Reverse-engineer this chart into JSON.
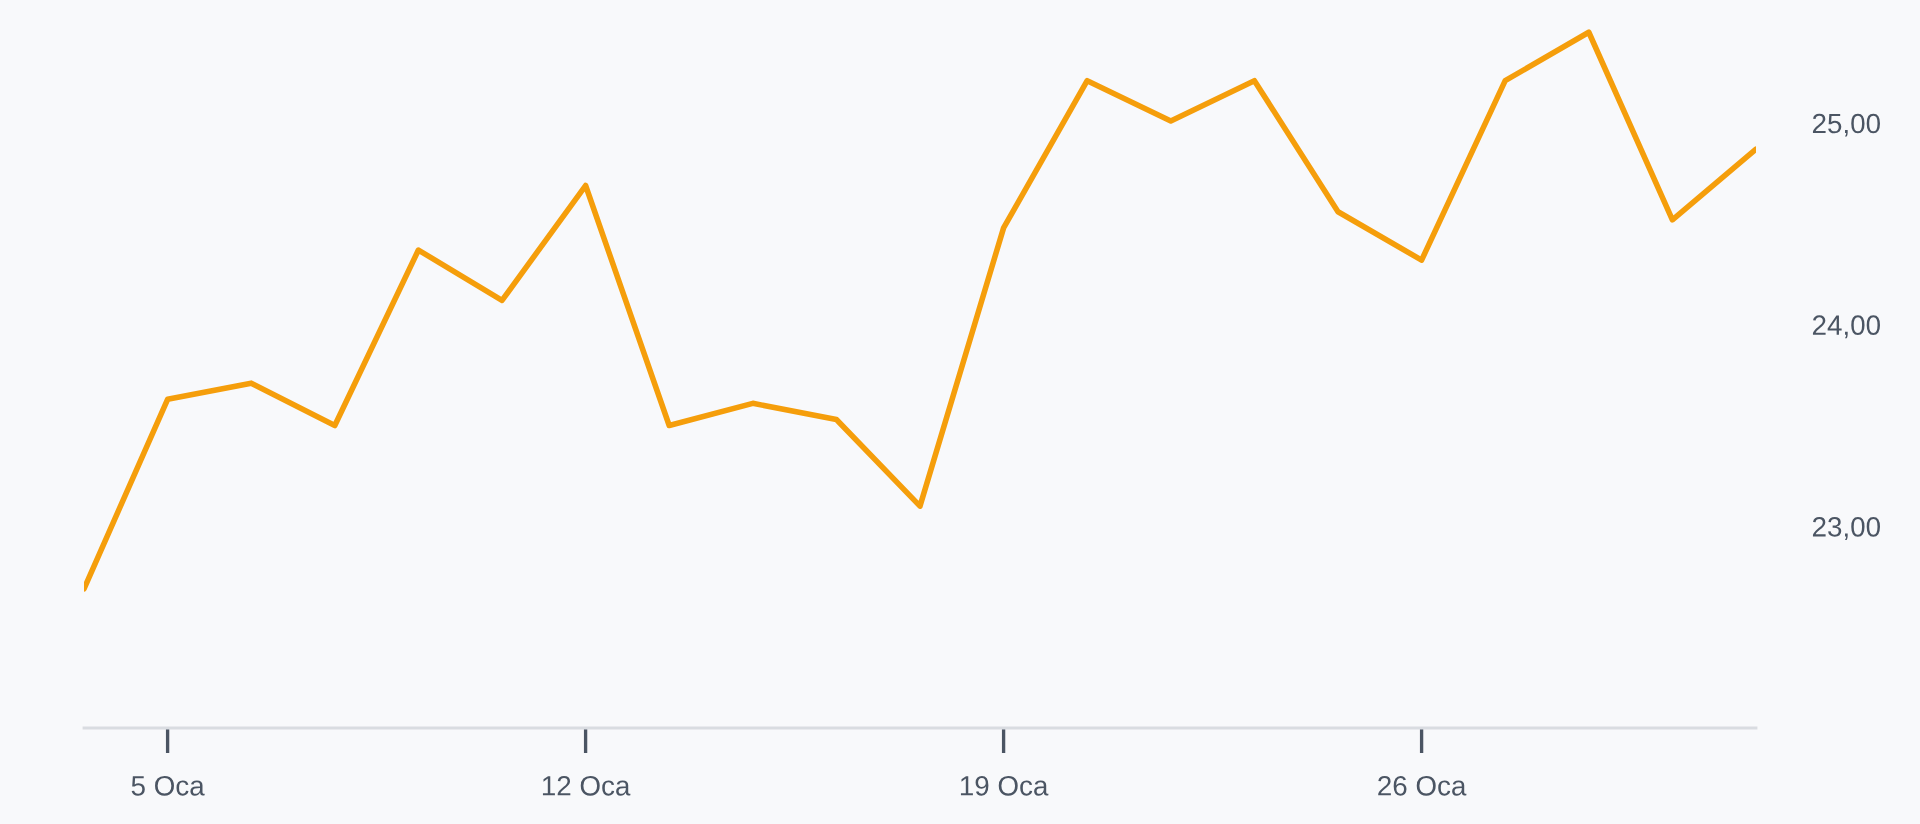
{
  "chart_data": {
    "type": "line",
    "categories": [
      null,
      "5 Oca",
      null,
      null,
      null,
      null,
      "12 Oca",
      null,
      null,
      null,
      null,
      "19 Oca",
      null,
      null,
      null,
      null,
      "26 Oca",
      null,
      null,
      null,
      null
    ],
    "series": [
      {
        "color": "#f59e0b",
        "values": [
          22.69,
          23.63,
          23.71,
          23.5,
          24.37,
          24.12,
          24.69,
          23.5,
          23.61,
          23.53,
          23.1,
          24.48,
          25.21,
          25.01,
          25.21,
          24.56,
          24.32,
          25.21,
          25.45,
          24.52,
          24.87
        ]
      }
    ],
    "ylim": [
      22.0,
      25.6
    ],
    "yticks": [
      {
        "value": 23,
        "label": "23,00"
      },
      {
        "value": 24,
        "label": "24,00"
      },
      {
        "value": 25,
        "label": "25,00"
      }
    ],
    "line_style": "solid"
  }
}
